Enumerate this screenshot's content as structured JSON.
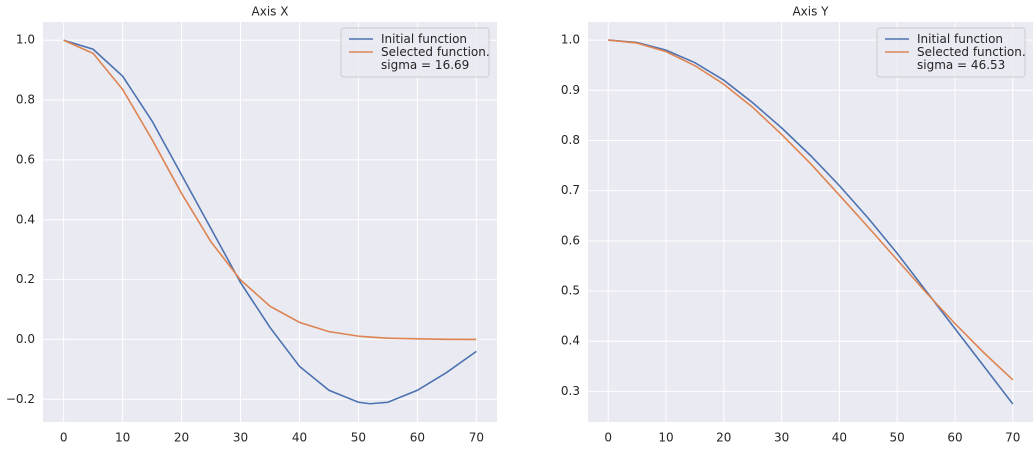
{
  "chart_data": [
    {
      "type": "line",
      "title": "Axis X",
      "x": [
        0,
        5,
        10,
        15,
        20,
        25,
        30,
        35,
        40,
        45,
        50,
        52,
        55,
        60,
        65,
        70
      ],
      "series": [
        {
          "name": "Initial function",
          "color": "#4c72b0",
          "values": [
            1.0,
            0.97,
            0.88,
            0.73,
            0.55,
            0.37,
            0.19,
            0.04,
            -0.09,
            -0.17,
            -0.21,
            -0.215,
            -0.21,
            -0.17,
            -0.11,
            -0.04
          ]
        },
        {
          "name": "Selected function.\nsigma = 16.69",
          "color": "#dd8452",
          "values": [
            1.0,
            0.956,
            0.836,
            0.668,
            0.488,
            0.326,
            0.199,
            0.111,
            0.057,
            0.026,
            0.011,
            0.008,
            0.004,
            0.002,
            0.0005,
            0.0001
          ]
        }
      ],
      "xlim": [
        -3.5,
        73.5
      ],
      "xticks": [
        0,
        10,
        20,
        30,
        40,
        50,
        60,
        70
      ],
      "ylim": [
        -0.276,
        1.061
      ],
      "yticks": [
        {
          "value": -0.2,
          "label": "−0.2"
        },
        {
          "value": 0,
          "label": "0.0"
        },
        0.2,
        0.4,
        0.6,
        0.8,
        {
          "value": 1,
          "label": "1.0"
        }
      ],
      "grid": true,
      "legend": "upper right"
    },
    {
      "type": "line",
      "title": "Axis Y",
      "x": [
        0,
        5,
        10,
        15,
        20,
        25,
        30,
        35,
        40,
        45,
        50,
        55,
        60,
        65,
        70
      ],
      "series": [
        {
          "name": "Initial function",
          "color": "#4c72b0",
          "values": [
            1.0,
            0.995,
            0.98,
            0.955,
            0.92,
            0.875,
            0.825,
            0.77,
            0.71,
            0.645,
            0.575,
            0.5,
            0.425,
            0.35,
            0.275
          ]
        },
        {
          "name": "Selected function.\nsigma = 46.53",
          "color": "#dd8452",
          "values": [
            1.0,
            0.994,
            0.977,
            0.949,
            0.912,
            0.866,
            0.812,
            0.754,
            0.691,
            0.627,
            0.562,
            0.497,
            0.435,
            0.377,
            0.323
          ]
        }
      ],
      "xlim": [
        -3.5,
        73.5
      ],
      "xticks": [
        0,
        10,
        20,
        30,
        40,
        50,
        60,
        70
      ],
      "ylim": [
        0.239,
        1.036
      ],
      "yticks": [
        0.3,
        0.4,
        0.5,
        0.6,
        0.7,
        0.8,
        0.9,
        {
          "value": 1,
          "label": "1.0"
        }
      ],
      "grid": true,
      "legend": "upper right"
    }
  ]
}
